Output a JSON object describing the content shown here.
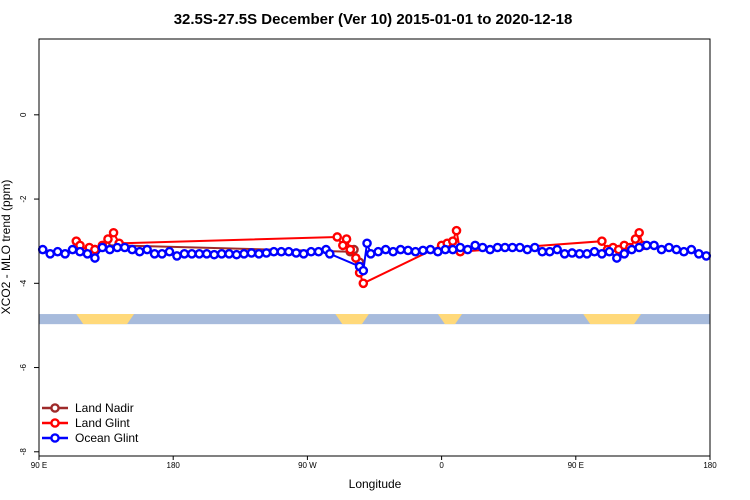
{
  "chart_data": {
    "type": "line",
    "title": "32.5S-27.5S December (Ver 10)   2015-01-01 to 2020-12-18",
    "xlabel": "Longitude",
    "ylabel": "XCO2 - MLO trend (ppm)",
    "xlim": [
      90,
      450
    ],
    "ylim": [
      -8.1,
      1.8
    ],
    "x_ticks": [
      {
        "value": 90,
        "label": "90 E"
      },
      {
        "value": 162,
        "label": "180"
      },
      {
        "value": 234,
        "label": "90 W"
      },
      {
        "value": 306,
        "label": "0"
      },
      {
        "value": 378,
        "label": "90 E"
      },
      {
        "value": 450,
        "label": "180"
      }
    ],
    "y_ticks": [
      {
        "value": 0,
        "label": "0"
      },
      {
        "value": -2,
        "label": "-2"
      },
      {
        "value": -4,
        "label": "-4"
      },
      {
        "value": -6,
        "label": "-6"
      },
      {
        "value": -8,
        "label": "-8"
      }
    ],
    "legend_position": "bottom-left",
    "surface_band": {
      "y_range": [
        -4.97,
        -4.73
      ],
      "ocean_color": "#a7bbdc",
      "land_color": "#ffd97a",
      "land_segments": [
        [
          110,
          141
        ],
        [
          249,
          267
        ],
        [
          304,
          317
        ],
        [
          382,
          413
        ]
      ]
    },
    "series": [
      {
        "name": "Land Nadir",
        "color": "#9e2a2a",
        "x": [
          120,
          126,
          133,
          257,
          259,
          262
        ],
        "y": [
          -3.2,
          -3.1,
          -3.1,
          -3.25,
          -3.2,
          -3.5
        ]
      },
      {
        "name": "Land Glint",
        "color": "#ff0000",
        "x": [
          110,
          112,
          115,
          117,
          120,
          124,
          127,
          130,
          133,
          250,
          253,
          255,
          257,
          260,
          262,
          264,
          306,
          309,
          312,
          314,
          316,
          392,
          395,
          398,
          401,
          404,
          407,
          410,
          412,
          414
        ],
        "y": [
          -3.0,
          -3.1,
          -3.25,
          -3.15,
          -3.2,
          -3.1,
          -2.95,
          -2.8,
          -3.05,
          -2.9,
          -3.1,
          -2.95,
          -3.2,
          -3.4,
          -3.75,
          -4.0,
          -3.1,
          -3.05,
          -3.0,
          -2.75,
          -3.25,
          -3.0,
          -3.2,
          -3.15,
          -3.2,
          -3.1,
          -3.15,
          -2.95,
          -2.8,
          -3.1
        ]
      },
      {
        "name": "Ocean Glint",
        "color": "#0000ff",
        "x": [
          92,
          96,
          100,
          104,
          108,
          112,
          116,
          120,
          124,
          128,
          132,
          136,
          140,
          144,
          148,
          152,
          156,
          160,
          164,
          168,
          172,
          176,
          180,
          184,
          188,
          192,
          196,
          200,
          204,
          208,
          212,
          216,
          220,
          224,
          228,
          232,
          236,
          240,
          244,
          246,
          262,
          264,
          266,
          268,
          272,
          276,
          280,
          284,
          288,
          292,
          296,
          300,
          304,
          308,
          312,
          316,
          320,
          324,
          328,
          332,
          336,
          340,
          344,
          348,
          352,
          356,
          360,
          364,
          368,
          372,
          376,
          380,
          384,
          388,
          392,
          396,
          400,
          404,
          408,
          412,
          416,
          420,
          424,
          428,
          432,
          436,
          440,
          444,
          448
        ],
        "y": [
          -3.2,
          -3.3,
          -3.25,
          -3.3,
          -3.2,
          -3.25,
          -3.3,
          -3.4,
          -3.15,
          -3.2,
          -3.15,
          -3.15,
          -3.2,
          -3.25,
          -3.2,
          -3.3,
          -3.3,
          -3.25,
          -3.35,
          -3.3,
          -3.3,
          -3.3,
          -3.3,
          -3.32,
          -3.3,
          -3.3,
          -3.32,
          -3.3,
          -3.28,
          -3.3,
          -3.28,
          -3.25,
          -3.25,
          -3.25,
          -3.28,
          -3.3,
          -3.25,
          -3.25,
          -3.2,
          -3.3,
          -3.6,
          -3.7,
          -3.05,
          -3.3,
          -3.25,
          -3.2,
          -3.25,
          -3.2,
          -3.22,
          -3.25,
          -3.22,
          -3.2,
          -3.25,
          -3.2,
          -3.2,
          -3.15,
          -3.2,
          -3.1,
          -3.15,
          -3.2,
          -3.15,
          -3.15,
          -3.15,
          -3.15,
          -3.2,
          -3.15,
          -3.25,
          -3.25,
          -3.2,
          -3.3,
          -3.28,
          -3.3,
          -3.3,
          -3.25,
          -3.3,
          -3.25,
          -3.4,
          -3.3,
          -3.2,
          -3.15,
          -3.1,
          -3.1,
          -3.2,
          -3.15,
          -3.2,
          -3.25,
          -3.2,
          -3.3,
          -3.35
        ]
      }
    ]
  }
}
